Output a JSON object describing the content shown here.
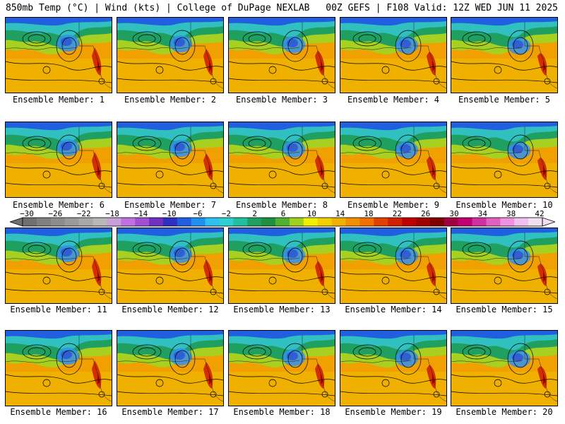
{
  "header": {
    "left": "850mb Temp (°C) | Wind (kts) | College of DuPage NEXLAB",
    "right": "00Z GEFS | F108 Valid: 12Z WED JUN 11 2025"
  },
  "members": [
    "Ensemble Member: 1",
    "Ensemble Member: 2",
    "Ensemble Member: 3",
    "Ensemble Member: 4",
    "Ensemble Member: 5",
    "Ensemble Member: 6",
    "Ensemble Member: 7",
    "Ensemble Member: 8",
    "Ensemble Member: 9",
    "Ensemble Member: 10",
    "Ensemble Member: 11",
    "Ensemble Member: 12",
    "Ensemble Member: 13",
    "Ensemble Member: 14",
    "Ensemble Member: 15",
    "Ensemble Member: 16",
    "Ensemble Member: 17",
    "Ensemble Member: 18",
    "Ensemble Member: 19",
    "Ensemble Member: 20"
  ],
  "colorbar": {
    "ticks": [
      "−30",
      "−26",
      "−22",
      "−18",
      "−14",
      "−10",
      "−6",
      "−2",
      "2",
      "6",
      "10",
      "14",
      "18",
      "22",
      "26",
      "30",
      "34",
      "38",
      "42"
    ],
    "colors": [
      "#707070",
      "#808080",
      "#8c8c8c",
      "#9a9a9a",
      "#a8a8a8",
      "#b8b8b8",
      "#c8a0d8",
      "#c070e0",
      "#a050d0",
      "#7030c0",
      "#3030c0",
      "#2060e0",
      "#2090f0",
      "#30c0f0",
      "#30d0d0",
      "#20c0a0",
      "#20a060",
      "#209040",
      "#50b030",
      "#a0d020",
      "#f0f000",
      "#f0d000",
      "#f0b000",
      "#f09000",
      "#f07000",
      "#e04000",
      "#d02000",
      "#c00000",
      "#a00000",
      "#800000",
      "#a00040",
      "#c00070",
      "#d030a0",
      "#e060c0",
      "#f090e0",
      "#f0c0f0",
      "#f0e0f0"
    ]
  }
}
